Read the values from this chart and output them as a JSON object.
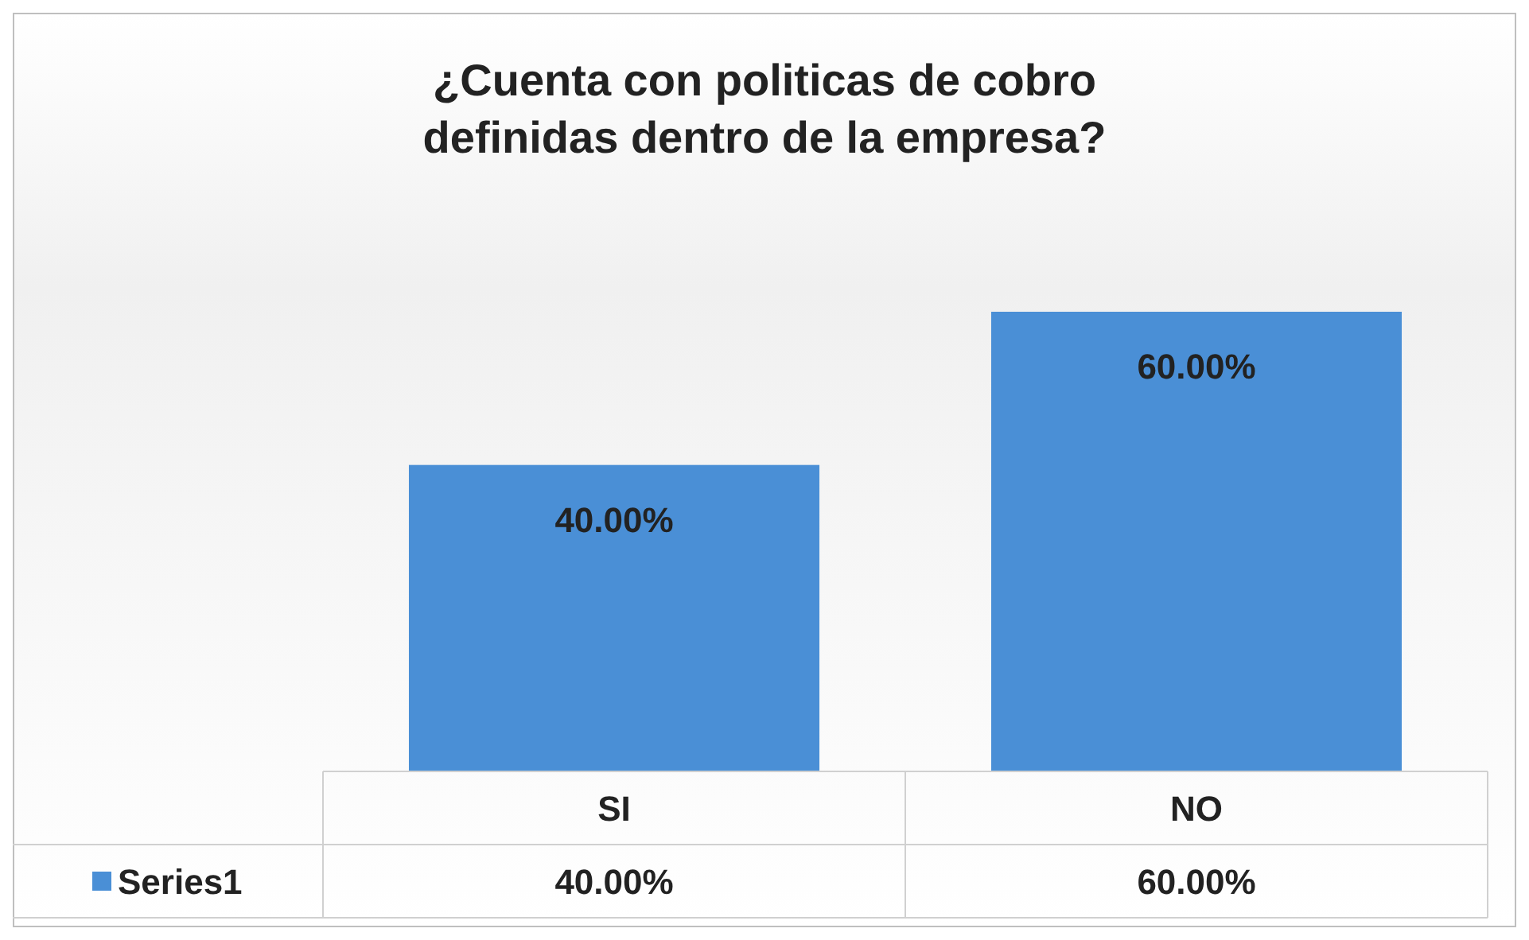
{
  "chart_data": {
    "type": "bar",
    "title": "¿Cuenta con politicas de cobro definidas dentro de la empresa?",
    "categories": [
      "SI",
      "NO"
    ],
    "series": [
      {
        "name": "Series1",
        "color": "#4a8fd6",
        "values": [
          40,
          60
        ],
        "value_labels": [
          "40.00%",
          "60.00%"
        ]
      }
    ],
    "legend": "bottom"
  }
}
